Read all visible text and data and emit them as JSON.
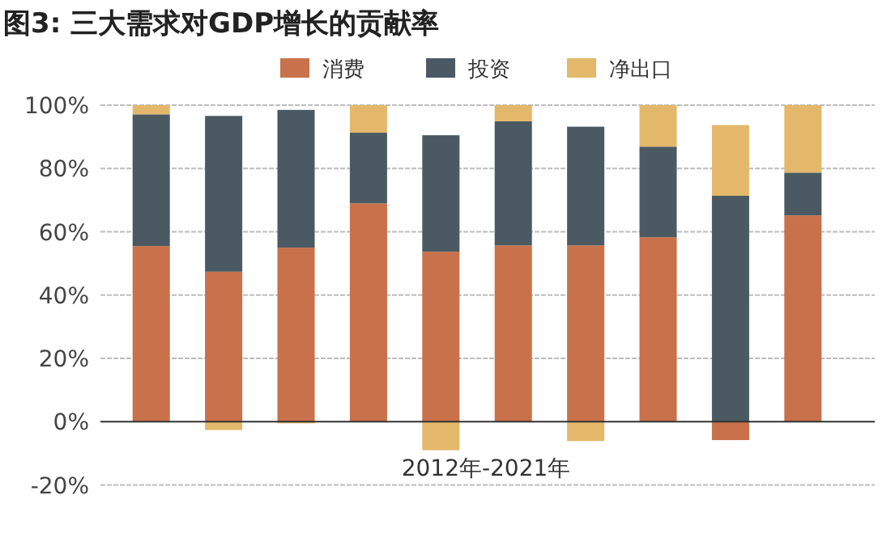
{
  "chart_data": {
    "type": "bar",
    "title": "图3: 三大需求对GDP增长的贡献率",
    "xlabel": "2012年-2021年",
    "stacked": true,
    "grid": "y",
    "legend": "top",
    "categories": [
      null,
      null,
      null,
      null,
      null,
      null,
      null,
      null,
      null,
      null
    ],
    "series": [
      {
        "name": "消费",
        "color": "#c8714a",
        "values": [
          55.5,
          47.4,
          55.0,
          69.0,
          53.7,
          55.7,
          55.7,
          58.3,
          -5.8,
          65.2
        ]
      },
      {
        "name": "投资",
        "color": "#4b5a62",
        "values": [
          41.6,
          49.2,
          43.5,
          22.3,
          36.8,
          39.2,
          37.5,
          28.6,
          71.4,
          13.5
        ]
      },
      {
        "name": "净出口",
        "color": "#e3b86a",
        "values": [
          2.9,
          -2.6,
          -0.5,
          8.7,
          -9.0,
          5.1,
          -6.1,
          13.1,
          22.3,
          21.3
        ]
      }
    ],
    "ylim": [
      -20,
      100
    ],
    "yticks": [
      {
        "value": -20,
        "label": "-20%"
      },
      {
        "value": 0,
        "label": "0%"
      },
      {
        "value": 20,
        "label": "20%"
      },
      {
        "value": 40,
        "label": "40%"
      },
      {
        "value": 60,
        "label": "60%"
      },
      {
        "value": 80,
        "label": "80%"
      },
      {
        "value": 100,
        "label": "100%"
      }
    ]
  }
}
